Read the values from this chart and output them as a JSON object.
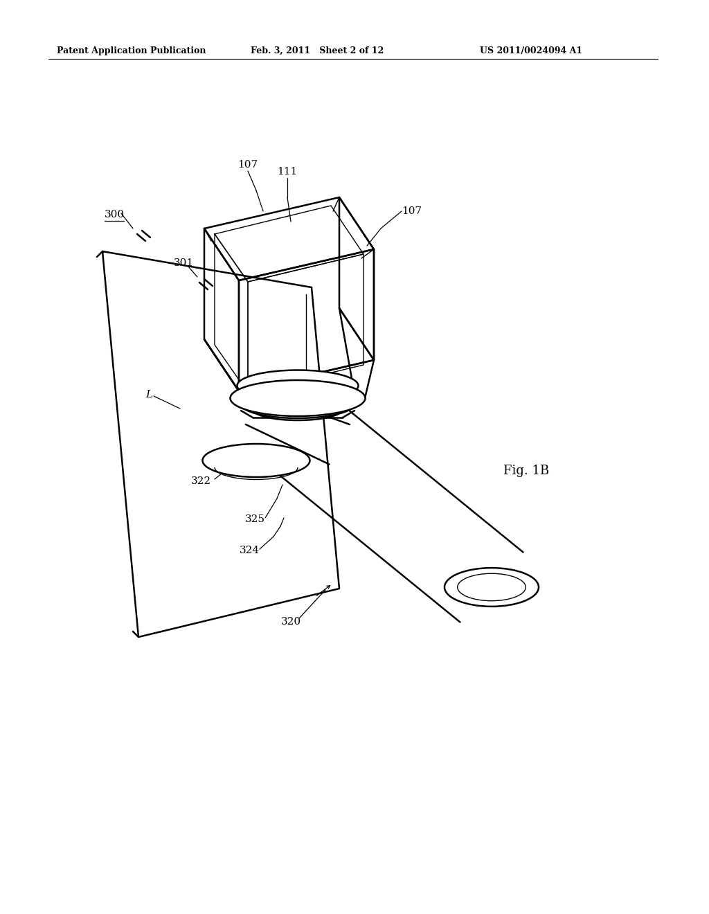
{
  "background_color": "#ffffff",
  "header_left": "Patent Application Publication",
  "header_mid": "Feb. 3, 2011   Sheet 2 of 12",
  "header_right": "US 2011/0024094 A1",
  "fig_label": "Fig. 1B",
  "line_color": "#000000",
  "lw_main": 1.8,
  "lw_inner": 1.0,
  "lw_leader": 0.9,
  "lw_header": 0.8,
  "font_size_header": 9,
  "font_size_ref": 11,
  "font_size_fig": 13
}
